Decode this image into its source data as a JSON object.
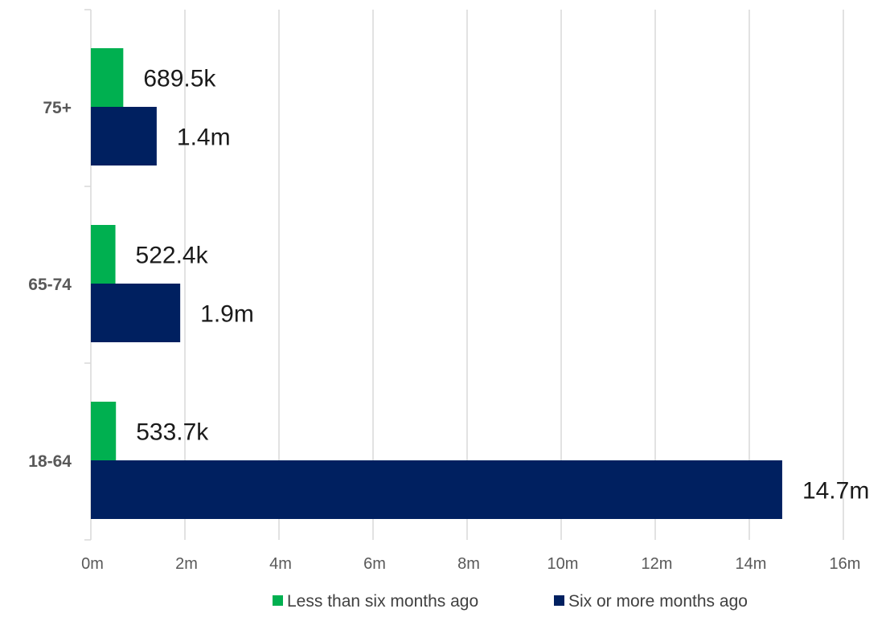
{
  "chart_data": {
    "type": "bar",
    "orientation": "horizontal",
    "categories": [
      "75+",
      "65-74",
      "18-64"
    ],
    "series": [
      {
        "name": "Less than six months ago",
        "color": "#00b050",
        "values": [
          0.6895,
          0.5224,
          0.5337
        ],
        "labels": [
          "689.5k",
          "522.4k",
          "533.7k"
        ]
      },
      {
        "name": "Six or more months ago",
        "color": "#002060",
        "values": [
          1.4,
          1.9,
          14.7
        ],
        "labels": [
          "1.4m",
          "1.9m",
          "14.7m"
        ]
      }
    ],
    "xlim": [
      0,
      16
    ],
    "x_ticks": [
      0,
      2,
      4,
      6,
      8,
      10,
      12,
      14,
      16
    ],
    "x_tick_labels": [
      "0m",
      "2m",
      "4m",
      "6m",
      "8m",
      "10m",
      "12m",
      "14m",
      "16m"
    ],
    "grid": true,
    "grid_color": "#d9d9d9",
    "legend_position": "bottom"
  }
}
